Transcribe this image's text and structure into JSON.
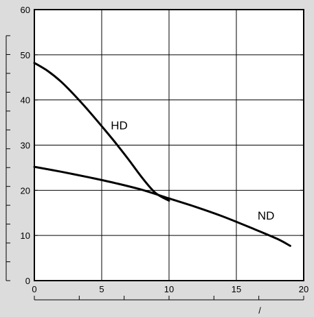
{
  "chart_data": {
    "type": "line",
    "xlim": [
      0,
      20
    ],
    "ylim": [
      0,
      60
    ],
    "x_ticks": [
      0,
      5,
      10,
      15,
      20
    ],
    "y_ticks": [
      0,
      10,
      20,
      30,
      40,
      50,
      60
    ],
    "x_tick_labels": [
      "0",
      "5",
      "10",
      "15",
      "20"
    ],
    "y_tick_labels": [
      "0",
      "10",
      "20",
      "30",
      "40",
      "50",
      "60"
    ],
    "xlabel": "/",
    "ylabel": "",
    "grid": true,
    "series": [
      {
        "name": "HD",
        "x": [
          0,
          1,
          2,
          3,
          4,
          5,
          6,
          7,
          8,
          9,
          10
        ],
        "y": [
          48.2,
          46.4,
          44.0,
          41.0,
          37.7,
          34.2,
          30.6,
          26.8,
          22.8,
          19.4,
          17.7
        ]
      },
      {
        "name": "ND",
        "x": [
          0,
          2,
          4,
          6,
          8,
          10,
          12,
          14,
          16,
          18,
          19
        ],
        "y": [
          25.2,
          24.1,
          22.9,
          21.6,
          20.1,
          18.2,
          16.3,
          14.2,
          11.8,
          9.3,
          7.7
        ]
      }
    ]
  }
}
